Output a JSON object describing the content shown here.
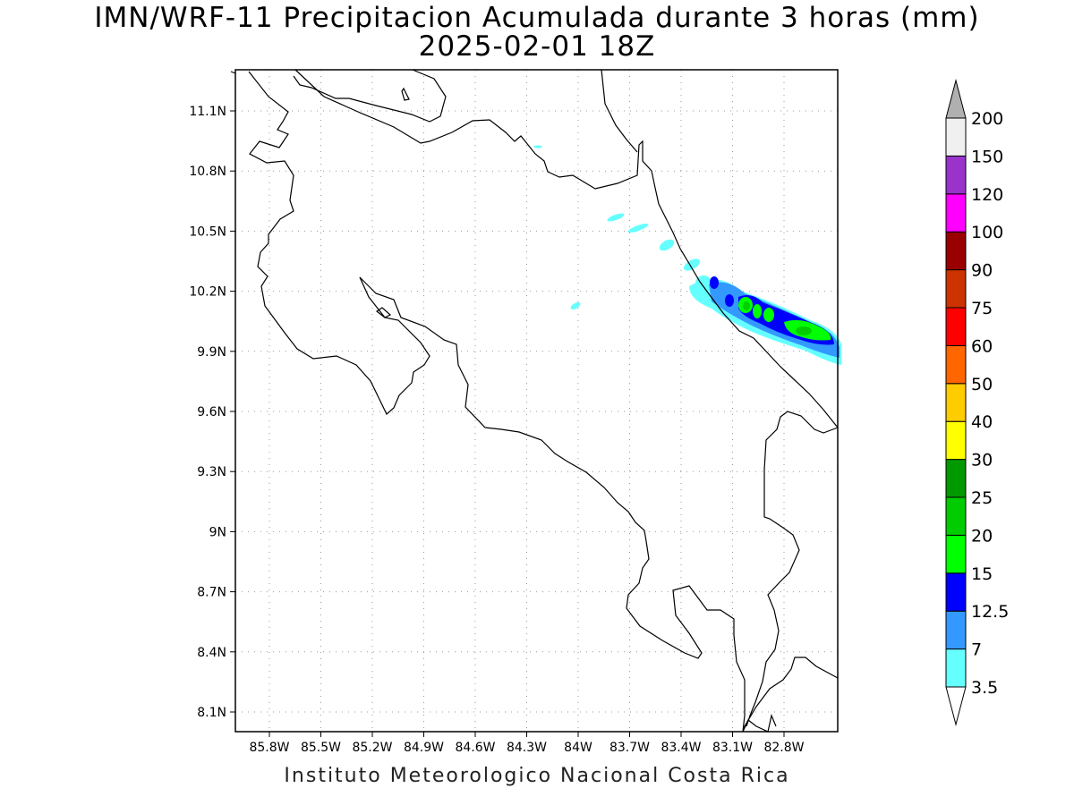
{
  "title_line1": "IMN/WRF-11 Precipitacion Acumulada durante 3 horas (mm)",
  "title_line2": "2025-02-01 18Z",
  "footer": "Instituto Meteorologico Nacional Costa Rica",
  "lat_labels": [
    "11.1N",
    "10.8N",
    "10.5N",
    "10.2N",
    "9.9N",
    "9.6N",
    "9.3N",
    "9N",
    "8.7N",
    "8.4N",
    "8.1N"
  ],
  "lon_labels": [
    "85.8W",
    "85.5W",
    "85.2W",
    "84.9W",
    "84.6W",
    "84.3W",
    "84W",
    "83.7W",
    "83.4W",
    "83.1W",
    "82.8W"
  ],
  "colorbar": {
    "labels": [
      "3.5",
      "7",
      "12.5",
      "15",
      "20",
      "25",
      "30",
      "40",
      "50",
      "60",
      "75",
      "90",
      "100",
      "120",
      "150",
      "200"
    ],
    "colors": [
      "#ffffff",
      "#66ffff",
      "#3399ff",
      "#0000ff",
      "#00ff00",
      "#00cc00",
      "#009900",
      "#ffff00",
      "#ffcc00",
      "#ff6600",
      "#ff0000",
      "#cc3300",
      "#990000",
      "#ff00ff",
      "#9933cc",
      "#f0f0f0",
      "#b0b0b0"
    ]
  }
}
